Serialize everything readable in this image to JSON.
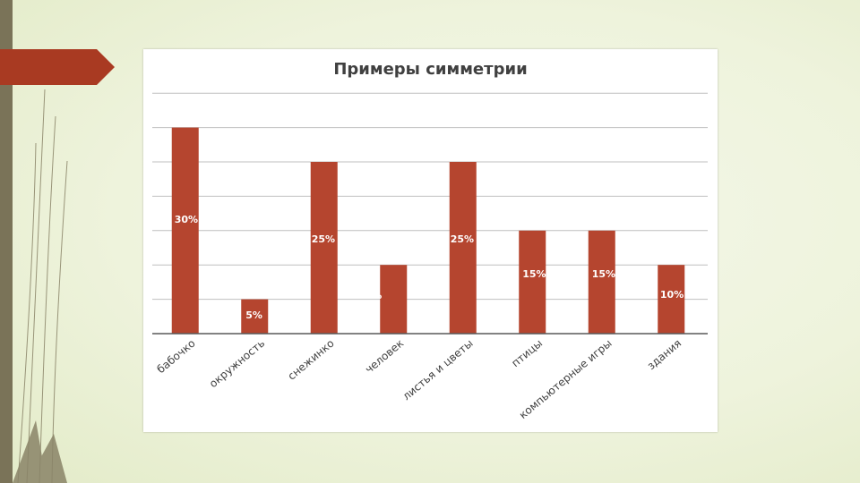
{
  "chart_data": {
    "type": "bar",
    "title": "Примеры симметрии",
    "categories": [
      "бабочко",
      "окружность",
      "снежинко",
      "человек",
      "листья и цветы",
      "птицы",
      "компьютерные игры",
      "здания"
    ],
    "values": [
      30,
      5,
      25,
      10,
      25,
      15,
      15,
      10
    ],
    "labels": [
      "30%",
      "5%",
      "25%",
      "10%",
      "25%",
      "15%",
      "15%",
      "10%"
    ],
    "ylim": [
      0,
      35
    ],
    "grid": true,
    "legend": "none",
    "colors": {
      "bar": "#b5452f",
      "grid": "#bfbfbf",
      "accent": "#a93a22"
    }
  }
}
